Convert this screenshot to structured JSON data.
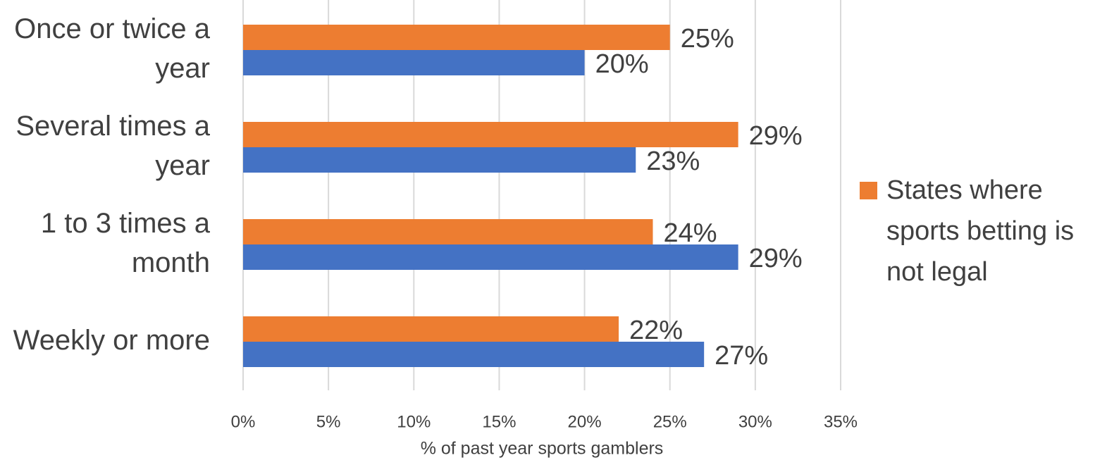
{
  "chart_data": {
    "type": "hbar",
    "categories": [
      "Once or twice a year",
      "Several times a year",
      "1 to 3 times a month",
      "Weekly or more"
    ],
    "series": [
      {
        "name": "States where sports betting is not legal",
        "color": "#ed7d31",
        "values": [
          25,
          29,
          24,
          22
        ],
        "value_labels": [
          "25%",
          "29%",
          "24%",
          "22%"
        ]
      },
      {
        "color": "#4472c4",
        "values": [
          20,
          23,
          29,
          27
        ],
        "value_labels": [
          "20%",
          "23%",
          "29%",
          "27%"
        ]
      }
    ],
    "xlabel": "% of past year sports gamblers",
    "xlim": [
      0,
      35
    ],
    "xticks": [
      {
        "value": 0,
        "label": "0%"
      },
      {
        "value": 5,
        "label": "5%"
      },
      {
        "value": 10,
        "label": "10%"
      },
      {
        "value": 15,
        "label": "15%"
      },
      {
        "value": 20,
        "label": "20%"
      },
      {
        "value": 25,
        "label": "25%"
      },
      {
        "value": 30,
        "label": "30%"
      },
      {
        "value": 35,
        "label": "35%"
      }
    ],
    "grid": true,
    "legend": "right"
  }
}
